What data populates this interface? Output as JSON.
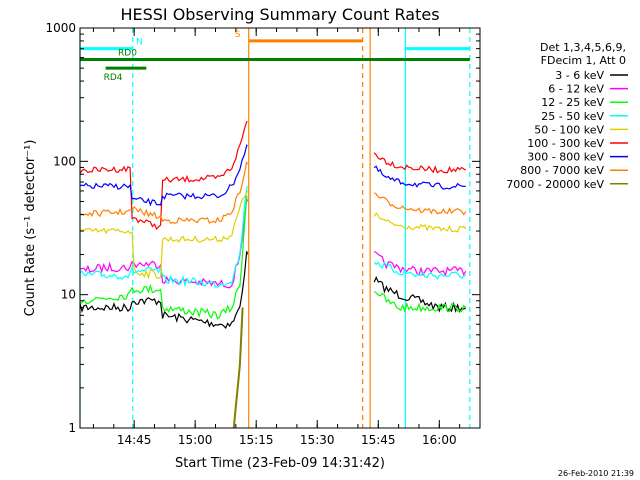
{
  "chart_data": {
    "type": "line",
    "title": "HESSI Observing Summary Count Rates",
    "xlabel": "Start Time (23-Feb-09 14:31:42)",
    "ylabel": "Count Rate (s⁻¹ detector⁻¹)",
    "y_scale": "log",
    "ylim": [
      1,
      1000
    ],
    "xlim": [
      "14:31:42",
      "16:10:00"
    ],
    "x_ticks": [
      "14:45",
      "15:00",
      "15:15",
      "15:30",
      "15:45",
      "16:00"
    ],
    "y_ticks": [
      "1",
      "10",
      "100",
      "1000"
    ],
    "grid": false,
    "legend_position": "right",
    "legend_header": [
      "Det 1,3,4,5,6,9,",
      "FDecim 1, Att 0"
    ],
    "series": [
      {
        "name": "3 - 6 keV",
        "color": "#000000",
        "x": [
          "14:31:42",
          "14:44:00",
          "14:44:30",
          "14:51:30",
          "14:52:00",
          "15:06:00",
          "15:09:00",
          "15:11:00",
          "15:12:40",
          "15:12:50",
          "15:42:00",
          "15:44:00",
          "15:47:00",
          "15:50:00",
          "15:55:00",
          "16:00:00",
          "16:06:30"
        ],
        "y": [
          8,
          8,
          9,
          9,
          7,
          6,
          6,
          8,
          20,
          20,
          null,
          13,
          11,
          10,
          9,
          8,
          8
        ]
      },
      {
        "name": "6 - 12 keV",
        "color": "#ff00ff",
        "x": [
          "14:31:42",
          "14:38:00",
          "14:44:00",
          "14:44:30",
          "14:51:30",
          "14:52:00",
          "15:06:00",
          "15:09:00",
          "15:11:00",
          "15:12:40",
          "15:12:50",
          "15:42:00",
          "15:44:00",
          "15:47:00",
          "15:50:00",
          "15:55:00",
          "16:00:00",
          "16:06:30"
        ],
        "y": [
          15,
          16,
          16,
          17,
          17,
          13,
          12,
          12,
          20,
          50,
          50,
          null,
          20,
          17,
          16,
          15,
          15,
          15
        ]
      },
      {
        "name": "12 - 25 keV",
        "color": "#00ff00",
        "x": [
          "14:31:42",
          "14:44:00",
          "14:44:30",
          "14:51:30",
          "14:52:00",
          "15:06:00",
          "15:09:00",
          "15:11:00",
          "15:12:40",
          "15:12:50",
          "15:42:00",
          "15:44:00",
          "15:47:00",
          "15:50:00",
          "15:55:00",
          "16:00:00",
          "16:06:30"
        ],
        "y": [
          9,
          10,
          11,
          11,
          8,
          7,
          8,
          12,
          55,
          55,
          null,
          11,
          9,
          8,
          8,
          8,
          8
        ]
      },
      {
        "name": "25 - 50 keV",
        "color": "#00ffff",
        "x": [
          "14:31:42",
          "14:44:00",
          "14:44:30",
          "14:51:30",
          "14:52:00",
          "15:06:00",
          "15:09:00",
          "15:11:00",
          "15:12:40",
          "15:12:50",
          "15:42:00",
          "15:44:00",
          "15:47:00",
          "15:50:00",
          "15:55:00",
          "16:00:00",
          "16:06:30"
        ],
        "y": [
          14,
          14,
          15,
          15,
          13,
          12,
          13,
          20,
          65,
          65,
          null,
          18,
          16,
          15,
          14,
          14,
          14
        ]
      },
      {
        "name": "50 - 100 keV",
        "color": "#e0d000",
        "x": [
          "14:31:42",
          "14:44:00",
          "14:44:30",
          "14:45:00",
          "14:51:30",
          "14:52:00",
          "15:06:00",
          "15:09:00",
          "15:11:00",
          "15:12:40",
          "15:12:50",
          "15:42:00",
          "15:44:00",
          "15:47:00",
          "15:50:00",
          "15:55:00",
          "16:00:00",
          "16:06:30"
        ],
        "y": [
          30,
          30,
          30,
          15,
          14,
          26,
          26,
          28,
          45,
          60,
          60,
          null,
          40,
          35,
          33,
          32,
          31,
          31
        ]
      },
      {
        "name": "100 - 300 keV",
        "color": "#ff0000",
        "x": [
          "14:31:42",
          "14:44:00",
          "14:44:30",
          "14:51:30",
          "14:52:00",
          "15:06:00",
          "15:09:00",
          "15:11:00",
          "15:12:40",
          "15:12:50",
          "15:42:00",
          "15:44:00",
          "15:47:00",
          "15:50:00",
          "15:55:00",
          "16:00:00",
          "16:06:30"
        ],
        "y": [
          85,
          88,
          38,
          32,
          72,
          75,
          90,
          130,
          200,
          200,
          null,
          115,
          100,
          92,
          88,
          86,
          86
        ]
      },
      {
        "name": "300 - 800 keV",
        "color": "#0000ff",
        "x": [
          "14:31:42",
          "14:44:00",
          "14:44:30",
          "14:51:30",
          "14:52:00",
          "15:06:00",
          "15:09:00",
          "15:11:00",
          "15:12:40",
          "15:12:50",
          "15:42:00",
          "15:44:00",
          "15:47:00",
          "15:50:00",
          "15:55:00",
          "16:00:00",
          "16:06:30"
        ],
        "y": [
          65,
          65,
          52,
          48,
          55,
          55,
          65,
          90,
          130,
          130,
          null,
          90,
          75,
          70,
          67,
          65,
          65
        ]
      },
      {
        "name": "800 - 7000 keV",
        "color": "#ff8000",
        "x": [
          "14:31:42",
          "14:44:00",
          "14:44:30",
          "14:51:30",
          "14:52:00",
          "15:06:00",
          "15:09:00",
          "15:11:00",
          "15:12:40",
          "15:12:50",
          "15:42:00",
          "15:44:00",
          "15:47:00",
          "15:50:00",
          "15:55:00",
          "16:00:00",
          "16:06:30"
        ],
        "y": [
          40,
          42,
          44,
          38,
          36,
          36,
          42,
          60,
          95,
          95,
          null,
          58,
          50,
          46,
          43,
          42,
          42
        ]
      },
      {
        "name": "7000 - 20000 keV",
        "color": "#808000",
        "x": [
          "15:09:30",
          "15:11:00",
          "15:11:40"
        ],
        "y": [
          1,
          3,
          8
        ]
      }
    ],
    "annotations": {
      "vlines_solid": [
        {
          "time": "14:31:42",
          "color": "#00ffff"
        },
        {
          "time": "15:13:10",
          "color": "#ff8000"
        },
        {
          "time": "15:43:00",
          "color": "#ff8000"
        },
        {
          "time": "15:51:40",
          "color": "#00ffff"
        }
      ],
      "vlines_dashed": [
        {
          "time": "14:44:40",
          "color": "#00ffff"
        },
        {
          "time": "15:41:10",
          "color": "#ff8000"
        },
        {
          "time": "16:07:30",
          "color": "#00ffff"
        }
      ],
      "hbars": [
        {
          "label": "N",
          "color": "#00ffff",
          "segments": [
            [
              "14:31:42",
              "14:44:30"
            ],
            [
              "15:51:40",
              "16:07:30"
            ]
          ],
          "y": 700
        },
        {
          "label": "S",
          "color": "#ff8000",
          "segments": [
            [
              "15:13:10",
              "15:41:10"
            ]
          ],
          "y": 800
        },
        {
          "label": "RD0",
          "color": "#008000",
          "segments": [
            [
              "14:31:42",
              "16:07:30"
            ]
          ],
          "y": 580
        },
        {
          "label": "RD4",
          "color": "#008000",
          "segments": [
            [
              "14:38:00",
              "14:48:00"
            ]
          ],
          "y": 500
        }
      ]
    },
    "footer_stamp": "26-Feb-2010 21:39"
  }
}
